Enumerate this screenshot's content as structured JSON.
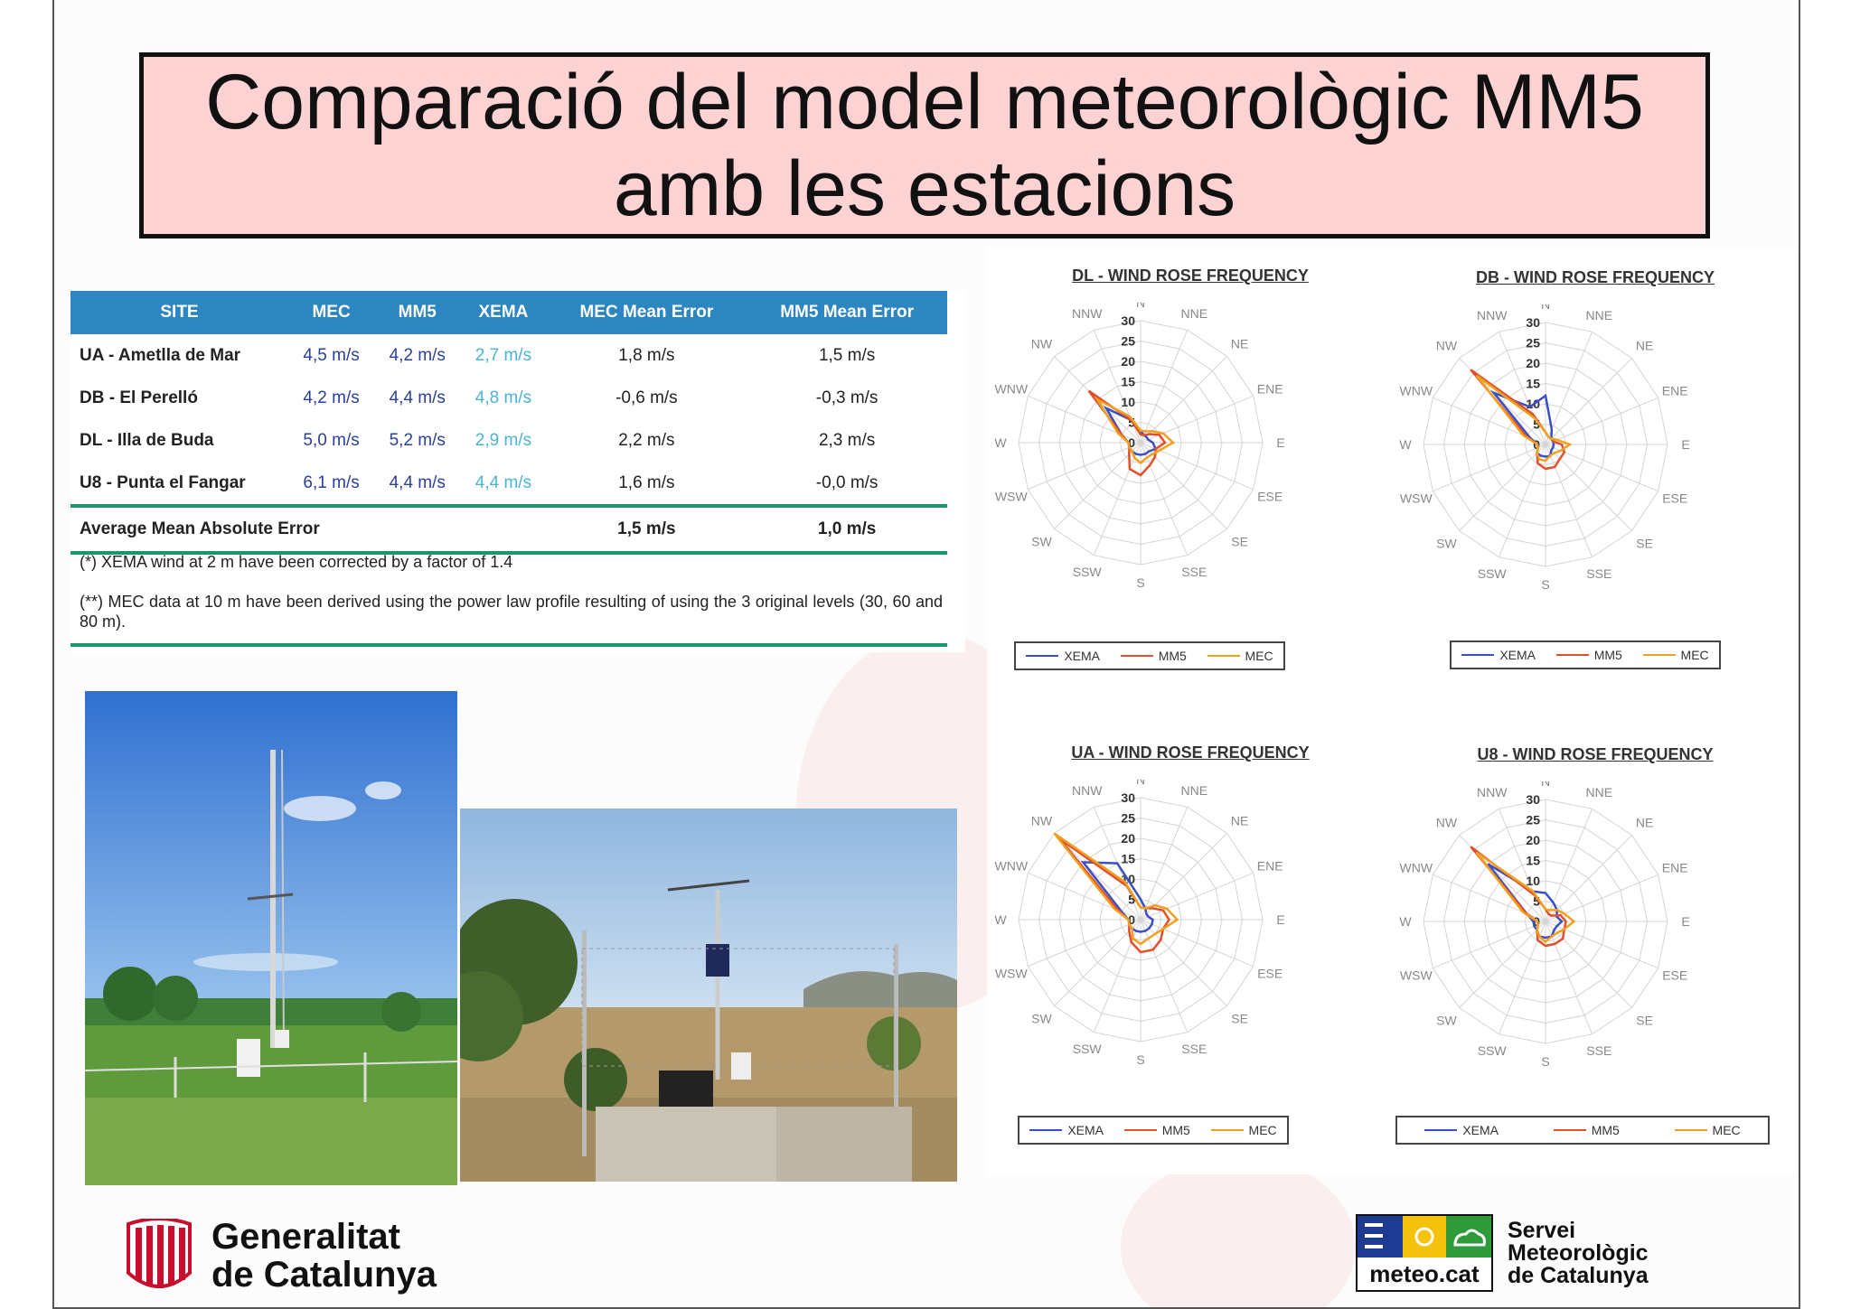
{
  "title": {
    "line1": "Comparació del model meteorològic MM5",
    "line2": "amb les estacions"
  },
  "table": {
    "headers": [
      "SITE",
      "MEC",
      "MM5",
      "XEMA",
      "MEC Mean Error",
      "MM5 Mean Error"
    ],
    "rows": [
      [
        "UA - Ametlla de Mar",
        "4,5 m/s",
        "4,2 m/s",
        "2,7 m/s",
        "1,8 m/s",
        "1,5 m/s"
      ],
      [
        "DB - El Perelló",
        "4,2 m/s",
        "4,4 m/s",
        "4,8 m/s",
        "-0,6 m/s",
        "-0,3 m/s"
      ],
      [
        "DL - Illa de Buda",
        "5,0 m/s",
        "5,2 m/s",
        "2,9 m/s",
        "2,2 m/s",
        "2,3 m/s"
      ],
      [
        "U8 - Punta el Fangar",
        "6,1 m/s",
        "4,4 m/s",
        "4,4 m/s",
        "1,6 m/s",
        "-0,0 m/s"
      ]
    ],
    "average": {
      "label": "Average Mean Absolute Error",
      "mec": "1,5 m/s",
      "mm5": "1,0 m/s"
    },
    "note1": "(*) XEMA wind at 2 m have been corrected by a factor of 1.4",
    "note2": "(**) MEC data at 10 m have been derived using the power law profile resulting of using the 3 original levels (30, 60 and 80 m)."
  },
  "chart_data": [
    {
      "type": "radar",
      "title": "DL - WIND ROSE FREQUENCY",
      "directions": [
        "N",
        "NNE",
        "NE",
        "ENE",
        "E",
        "ESE",
        "SE",
        "SSE",
        "S",
        "SSW",
        "SW",
        "WSW",
        "W",
        "WNW",
        "NW",
        "NNW"
      ],
      "radial_ticks": [
        0,
        5,
        10,
        15,
        20,
        25,
        30
      ],
      "rlim": [
        0,
        30
      ],
      "series": [
        {
          "name": "XEMA",
          "values": [
            3,
            2,
            2,
            2,
            3,
            4,
            3,
            3,
            3,
            3,
            3,
            3,
            3,
            5,
            12,
            6
          ]
        },
        {
          "name": "MM5",
          "values": [
            2,
            2,
            3,
            5,
            6,
            4,
            5,
            6,
            8,
            7,
            4,
            3,
            3,
            5,
            18,
            6
          ]
        },
        {
          "name": "MEC",
          "values": [
            3,
            3,
            4,
            6,
            8,
            5,
            4,
            4,
            5,
            4,
            3,
            3,
            3,
            6,
            15,
            7
          ]
        }
      ],
      "legend": [
        "XEMA",
        "MM5",
        "MEC"
      ]
    },
    {
      "type": "radar",
      "title": "DB - WIND ROSE FREQUENCY",
      "directions": [
        "N",
        "NNE",
        "NE",
        "ENE",
        "E",
        "ESE",
        "SE",
        "SSE",
        "S",
        "SSW",
        "SW",
        "WSW",
        "W",
        "WNW",
        "NW",
        "NNW"
      ],
      "radial_ticks": [
        0,
        5,
        10,
        15,
        20,
        25,
        30
      ],
      "rlim": [
        0,
        30
      ],
      "series": [
        {
          "name": "XEMA",
          "values": [
            12,
            4,
            2,
            2,
            2,
            2,
            2,
            3,
            3,
            3,
            3,
            2,
            2,
            4,
            18,
            10
          ]
        },
        {
          "name": "MM5",
          "values": [
            3,
            2,
            2,
            2,
            4,
            5,
            5,
            6,
            6,
            5,
            3,
            2,
            2,
            5,
            26,
            8
          ]
        },
        {
          "name": "MEC",
          "values": [
            3,
            2,
            2,
            3,
            6,
            4,
            3,
            3,
            4,
            4,
            3,
            2,
            2,
            6,
            24,
            7
          ]
        }
      ],
      "legend": [
        "XEMA",
        "MM5",
        "MEC"
      ]
    },
    {
      "type": "radar",
      "title": "UA - WIND ROSE FREQUENCY",
      "directions": [
        "N",
        "NNE",
        "NE",
        "ENE",
        "E",
        "ESE",
        "SE",
        "SSE",
        "S",
        "SSW",
        "SW",
        "WSW",
        "W",
        "WNW",
        "NW",
        "NNW"
      ],
      "radial_ticks": [
        0,
        5,
        10,
        15,
        20,
        25,
        30
      ],
      "rlim": [
        0,
        30
      ],
      "series": [
        {
          "name": "XEMA",
          "values": [
            5,
            3,
            2,
            2,
            3,
            3,
            3,
            3,
            3,
            3,
            3,
            3,
            3,
            5,
            20,
            15
          ]
        },
        {
          "name": "MM5",
          "values": [
            3,
            3,
            4,
            6,
            7,
            6,
            7,
            8,
            8,
            6,
            4,
            3,
            3,
            6,
            28,
            9
          ]
        },
        {
          "name": "MEC",
          "values": [
            3,
            3,
            5,
            7,
            9,
            6,
            5,
            5,
            6,
            5,
            3,
            3,
            3,
            7,
            30,
            10
          ]
        }
      ],
      "legend": [
        "XEMA",
        "MM5",
        "MEC"
      ]
    },
    {
      "type": "radar",
      "title": "U8 - WIND ROSE FREQUENCY",
      "directions": [
        "N",
        "NNE",
        "NE",
        "ENE",
        "E",
        "ESE",
        "SE",
        "SSE",
        "S",
        "SSW",
        "SW",
        "WSW",
        "W",
        "WNW",
        "NW",
        "NNW"
      ],
      "radial_ticks": [
        0,
        5,
        10,
        15,
        20,
        25,
        30
      ],
      "rlim": [
        0,
        30
      ],
      "series": [
        {
          "name": "XEMA",
          "values": [
            7,
            5,
            4,
            3,
            4,
            3,
            3,
            4,
            4,
            4,
            3,
            3,
            3,
            5,
            20,
            8
          ]
        },
        {
          "name": "MM5",
          "values": [
            3,
            2,
            2,
            4,
            5,
            5,
            6,
            6,
            6,
            5,
            3,
            2,
            2,
            5,
            26,
            7
          ]
        },
        {
          "name": "MEC",
          "values": [
            3,
            3,
            4,
            5,
            7,
            5,
            4,
            4,
            5,
            4,
            3,
            2,
            2,
            6,
            24,
            8
          ]
        }
      ],
      "legend": [
        "XEMA",
        "MM5",
        "MEC"
      ]
    }
  ],
  "colors": {
    "XEMA": "#3b4fc4",
    "MM5": "#e0502a",
    "MEC": "#f0a020",
    "table_header": "#2e86c1",
    "rule": "#19966e",
    "title_bg": "#fcd2d2"
  },
  "footer": {
    "gc_line1": "Generalitat",
    "gc_line2": "de Catalunya",
    "smc_logo_text": "meteo.cat",
    "smc_line1": "Servei",
    "smc_line2": "Meteorològic",
    "smc_line3": "de Catalunya"
  }
}
